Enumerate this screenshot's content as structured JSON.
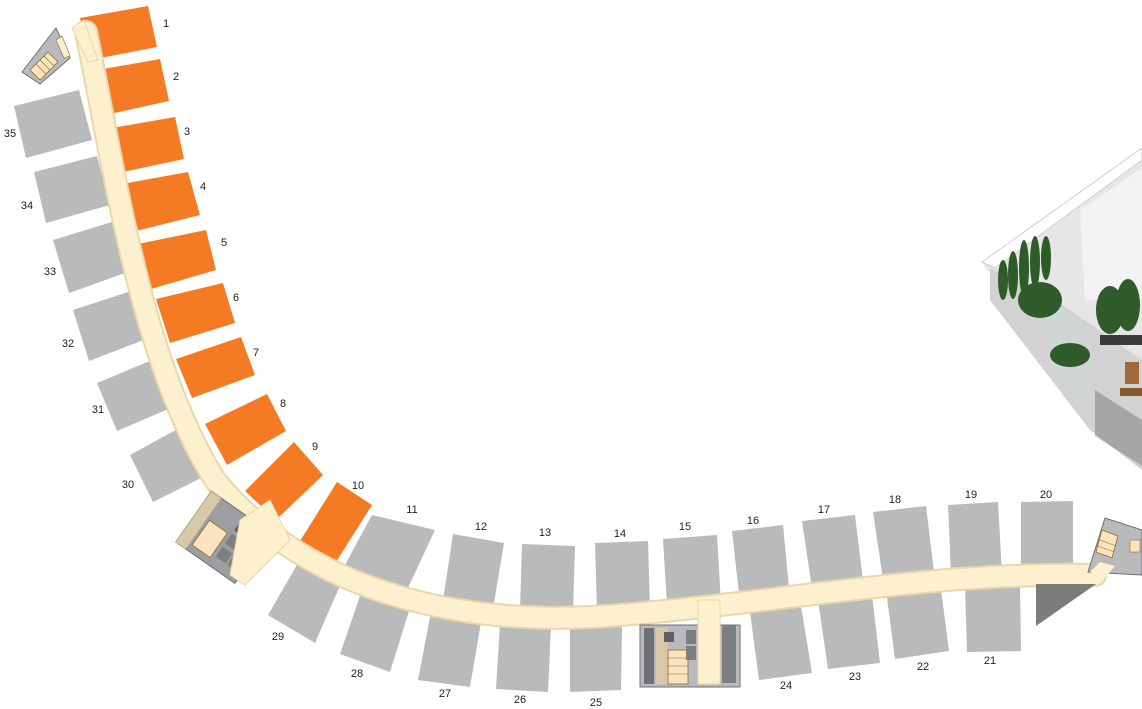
{
  "colors": {
    "available": "#f47b24",
    "unavailable": "#b9babc",
    "corridor": "#fdf0cf",
    "corridor_edge": "#e9d7a8",
    "core_dark": "#6f7073",
    "core_mid": "#9d9ea1",
    "wall": "#ffffff"
  },
  "units": [
    {
      "number": "1",
      "status": "available"
    },
    {
      "number": "2",
      "status": "available"
    },
    {
      "number": "3",
      "status": "available"
    },
    {
      "number": "4",
      "status": "available"
    },
    {
      "number": "5",
      "status": "available"
    },
    {
      "number": "6",
      "status": "available"
    },
    {
      "number": "7",
      "status": "available"
    },
    {
      "number": "8",
      "status": "available"
    },
    {
      "number": "9",
      "status": "available"
    },
    {
      "number": "10",
      "status": "available"
    },
    {
      "number": "11",
      "status": "unavailable"
    },
    {
      "number": "12",
      "status": "unavailable"
    },
    {
      "number": "13",
      "status": "unavailable"
    },
    {
      "number": "14",
      "status": "unavailable"
    },
    {
      "number": "15",
      "status": "unavailable"
    },
    {
      "number": "16",
      "status": "unavailable"
    },
    {
      "number": "17",
      "status": "unavailable"
    },
    {
      "number": "18",
      "status": "unavailable"
    },
    {
      "number": "19",
      "status": "unavailable"
    },
    {
      "number": "20",
      "status": "unavailable"
    },
    {
      "number": "21",
      "status": "unavailable"
    },
    {
      "number": "22",
      "status": "unavailable"
    },
    {
      "number": "23",
      "status": "unavailable"
    },
    {
      "number": "24",
      "status": "unavailable"
    },
    {
      "number": "25",
      "status": "unavailable"
    },
    {
      "number": "26",
      "status": "unavailable"
    },
    {
      "number": "27",
      "status": "unavailable"
    },
    {
      "number": "28",
      "status": "unavailable"
    },
    {
      "number": "29",
      "status": "unavailable"
    },
    {
      "number": "30",
      "status": "unavailable"
    },
    {
      "number": "31",
      "status": "unavailable"
    },
    {
      "number": "32",
      "status": "unavailable"
    },
    {
      "number": "33",
      "status": "unavailable"
    },
    {
      "number": "34",
      "status": "unavailable"
    },
    {
      "number": "35",
      "status": "unavailable"
    }
  ],
  "icons": {
    "stairs": "stairs-icon",
    "elevator": "elevator-icon",
    "apartment_render": "apartment-interior-render"
  }
}
